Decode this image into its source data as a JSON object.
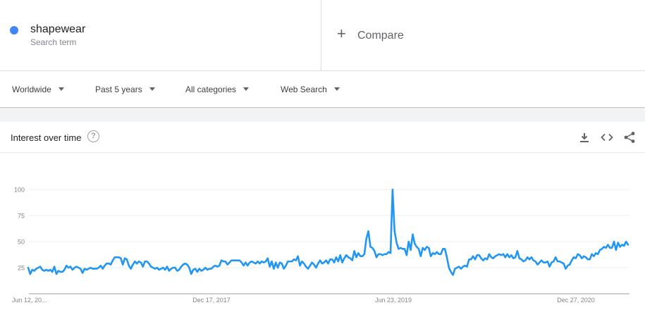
{
  "terms": [
    {
      "name": "shapewear",
      "subtitle": "Search term",
      "color": "#4285f4"
    }
  ],
  "compare": {
    "label": "Compare"
  },
  "filters": [
    {
      "label": "Worldwide"
    },
    {
      "label": "Past 5 years"
    },
    {
      "label": "All categories"
    },
    {
      "label": "Web Search"
    }
  ],
  "card": {
    "title": "Interest over time",
    "help_icon": "help-circle-icon",
    "actions": [
      "download-icon",
      "embed-code-icon",
      "share-icon"
    ]
  },
  "chart_data": {
    "type": "line",
    "title": "",
    "xlabel": "",
    "ylabel": "",
    "ylim": [
      0,
      100
    ],
    "yticks": [
      25,
      50,
      75,
      100
    ],
    "xtick_labels": [
      "Jun 12, 20...",
      "Dec 17, 2017",
      "Jun 23, 2019",
      "Dec 27, 2020"
    ],
    "grid": true,
    "series": [
      {
        "color": "#2196f3",
        "values": [
          25,
          19,
          23,
          22,
          24,
          25,
          26,
          23,
          22,
          23,
          22,
          23,
          21,
          26,
          19,
          22,
          21,
          21,
          23,
          27,
          25,
          26,
          23,
          25,
          26,
          25,
          24,
          20,
          24,
          23,
          24,
          25,
          24,
          24,
          24,
          25,
          27,
          24,
          27,
          29,
          29,
          28,
          32,
          35,
          35,
          35,
          34,
          28,
          34,
          33,
          27,
          24,
          28,
          31,
          29,
          31,
          30,
          26,
          31,
          31,
          29,
          26,
          25,
          24,
          25,
          23,
          24,
          25,
          23,
          26,
          22,
          24,
          25,
          25,
          22,
          23,
          26,
          28,
          29,
          28,
          25,
          19,
          23,
          24,
          21,
          24,
          22,
          23,
          25,
          23,
          24,
          24,
          26,
          27,
          26,
          27,
          32,
          31,
          31,
          28,
          30,
          32,
          32,
          32,
          32,
          32,
          30,
          27,
          30,
          27,
          30,
          31,
          30,
          29,
          31,
          29,
          31,
          30,
          31,
          34,
          26,
          31,
          24,
          30,
          25,
          30,
          29,
          24,
          27,
          31,
          31,
          31,
          33,
          32,
          36,
          27,
          31,
          29,
          26,
          24,
          27,
          30,
          28,
          25,
          29,
          32,
          29,
          30,
          32,
          29,
          33,
          33,
          30,
          35,
          31,
          37,
          30,
          34,
          37,
          35,
          34,
          32,
          41,
          35,
          39,
          36,
          36,
          38,
          53,
          60,
          45,
          44,
          41,
          35,
          38,
          38,
          37,
          38,
          38,
          40,
          39,
          100,
          60,
          49,
          43,
          44,
          43,
          43,
          37,
          50,
          42,
          57,
          48,
          45,
          43,
          36,
          44,
          42,
          45,
          44,
          36,
          39,
          38,
          40,
          38,
          38,
          43,
          43,
          35,
          25,
          21,
          18,
          24,
          25,
          26,
          24,
          26,
          27,
          26,
          33,
          33,
          36,
          33,
          37,
          37,
          34,
          32,
          34,
          33,
          38,
          35,
          34,
          36,
          37,
          38,
          37,
          38,
          35,
          38,
          35,
          37,
          34,
          35,
          41,
          34,
          33,
          31,
          32,
          35,
          33,
          35,
          32,
          31,
          28,
          30,
          32,
          30,
          30,
          31,
          26,
          30,
          31,
          35,
          31,
          31,
          30,
          29,
          24,
          27,
          28,
          32,
          35,
          34,
          38,
          37,
          34,
          36,
          35,
          33,
          33,
          38,
          36,
          39,
          38,
          42,
          43,
          45,
          44,
          47,
          44,
          44,
          50,
          42,
          49,
          45,
          47,
          46,
          50,
          47
        ]
      }
    ]
  }
}
